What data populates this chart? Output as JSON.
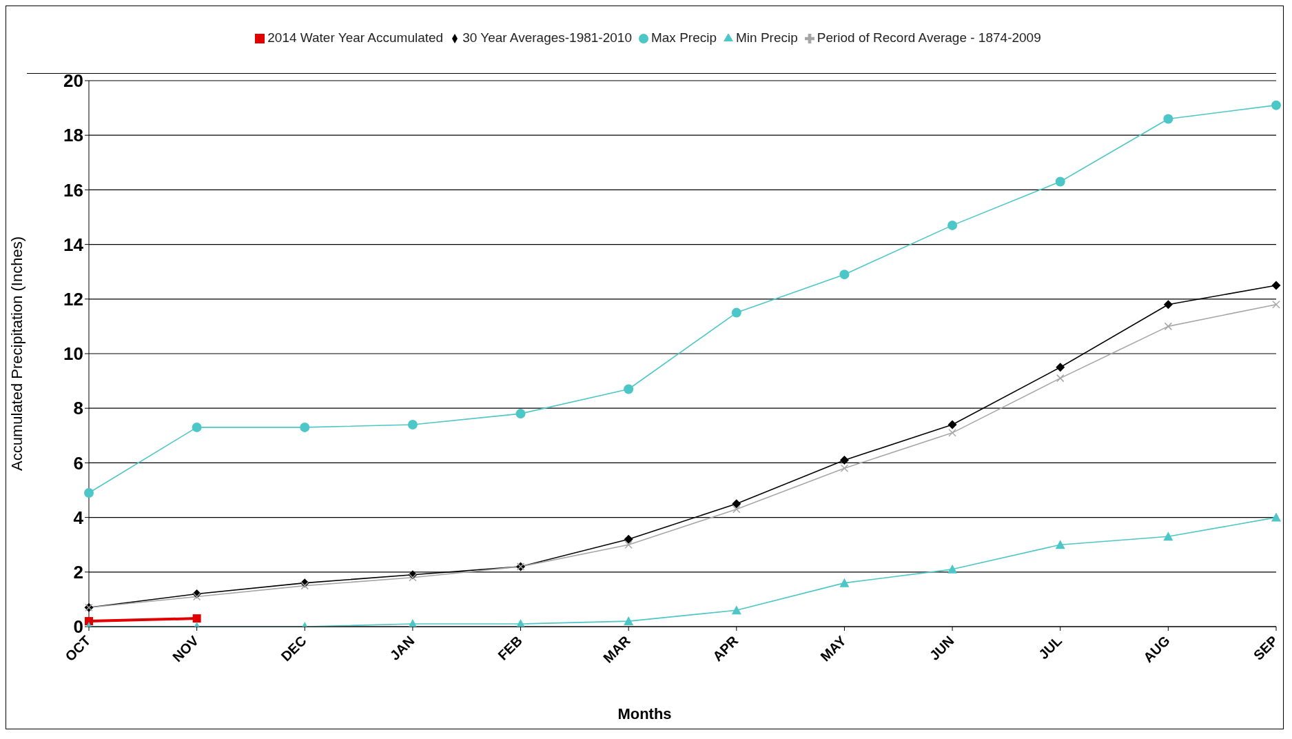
{
  "chart_data": {
    "type": "line",
    "xlabel": "Months",
    "ylabel": "Accumulated Precipitation (Inches)",
    "categories": [
      "OCT",
      "NOV",
      "DEC",
      "JAN",
      "FEB",
      "MAR",
      "APR",
      "MAY",
      "JUN",
      "JUL",
      "AUG",
      "SEP"
    ],
    "series": [
      {
        "name": "30 Year Averages-1981-2010",
        "color": "#000000",
        "marker": "diamond",
        "values": [
          0.7,
          1.2,
          1.6,
          1.9,
          2.2,
          3.2,
          4.5,
          6.1,
          7.4,
          9.5,
          11.8,
          12.5
        ]
      },
      {
        "name": "Period of Record Average - 1874-2009",
        "color": "#a6a6a6",
        "marker": "cross",
        "values": [
          0.7,
          1.1,
          1.5,
          1.8,
          2.2,
          3.0,
          4.3,
          5.8,
          7.1,
          9.1,
          11.0,
          11.8
        ]
      },
      {
        "name": "2014 Water Year Accumulated",
        "color": "#e00000",
        "marker": "square",
        "values": [
          0.2,
          0.3,
          null,
          null,
          null,
          null,
          null,
          null,
          null,
          null,
          null,
          null
        ]
      },
      {
        "name": "Max Precip",
        "color": "#4cc6c6",
        "marker": "circle",
        "values": [
          4.9,
          7.3,
          7.3,
          7.4,
          7.8,
          8.7,
          11.5,
          12.9,
          14.7,
          16.3,
          18.6,
          19.1
        ]
      },
      {
        "name": "Min Precip",
        "color": "#4cc6c6",
        "marker": "triangle",
        "values": [
          0.0,
          0.0,
          0.0,
          0.1,
          0.1,
          0.2,
          0.6,
          1.6,
          2.1,
          3.0,
          3.3,
          4.0
        ]
      }
    ],
    "ylim": [
      0,
      20
    ],
    "yticks": [
      0,
      2,
      4,
      6,
      8,
      10,
      12,
      14,
      16,
      18,
      20
    ],
    "grid": "y",
    "legend": "top",
    "line_style": "solid"
  }
}
